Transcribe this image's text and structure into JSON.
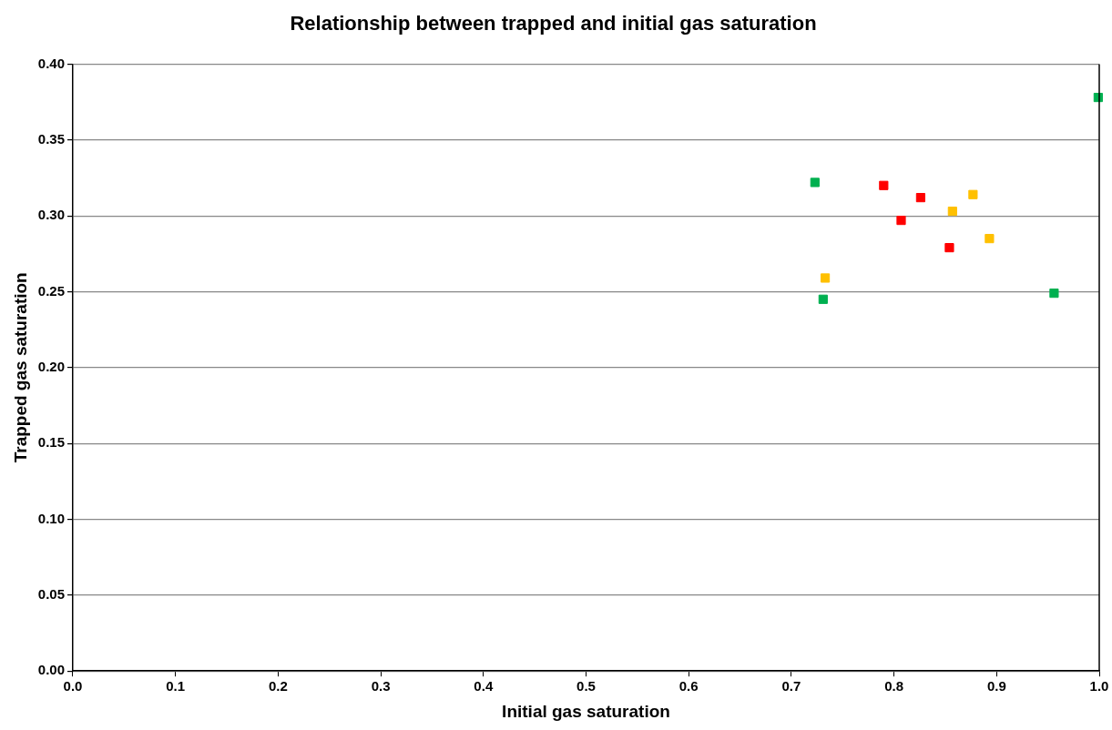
{
  "chart_data": {
    "type": "scatter",
    "title": "Relationship between trapped and initial gas saturation",
    "xlabel": "Initial gas saturation",
    "ylabel": "Trapped gas saturation",
    "series": [
      {
        "color": "#00b050",
        "x": [
          0.723,
          0.731,
          0.956
        ],
        "values": [
          0.322,
          0.245,
          0.249
        ]
      },
      {
        "color": "#ff0000",
        "x": [
          0.79,
          0.826,
          0.807,
          0.854
        ],
        "values": [
          0.32,
          0.312,
          0.297,
          0.279
        ]
      },
      {
        "color": "#ffc000",
        "x": [
          0.733,
          0.857,
          0.877,
          0.893
        ],
        "values": [
          0.259,
          0.303,
          0.314,
          0.285
        ]
      },
      {
        "color": "#00b050",
        "x": [
          0.999
        ],
        "values": [
          0.378
        ]
      }
    ],
    "xlim": [
      0,
      1
    ],
    "ylim": [
      0,
      0.4
    ],
    "xticks": [
      {
        "value": 0,
        "label": "0.0"
      },
      {
        "value": 0.1,
        "label": "0.1"
      },
      {
        "value": 0.2,
        "label": "0.2"
      },
      {
        "value": 0.3,
        "label": "0.3"
      },
      {
        "value": 0.4,
        "label": "0.4"
      },
      {
        "value": 0.5,
        "label": "0.5"
      },
      {
        "value": 0.6,
        "label": "0.6"
      },
      {
        "value": 0.7,
        "label": "0.7"
      },
      {
        "value": 0.8,
        "label": "0.8"
      },
      {
        "value": 0.9,
        "label": "0.9"
      },
      {
        "value": 1,
        "label": "1.0"
      }
    ],
    "yticks": [
      {
        "value": 0,
        "label": "0.00"
      },
      {
        "value": 0.05,
        "label": "0.05"
      },
      {
        "value": 0.1,
        "label": "0.10"
      },
      {
        "value": 0.15,
        "label": "0.15"
      },
      {
        "value": 0.2,
        "label": "0.20"
      },
      {
        "value": 0.25,
        "label": "0.25"
      },
      {
        "value": 0.3,
        "label": "0.30"
      },
      {
        "value": 0.35,
        "label": "0.35"
      },
      {
        "value": 0.4,
        "label": "0.40"
      }
    ],
    "grid": "y",
    "legend": false,
    "marker": "square"
  }
}
